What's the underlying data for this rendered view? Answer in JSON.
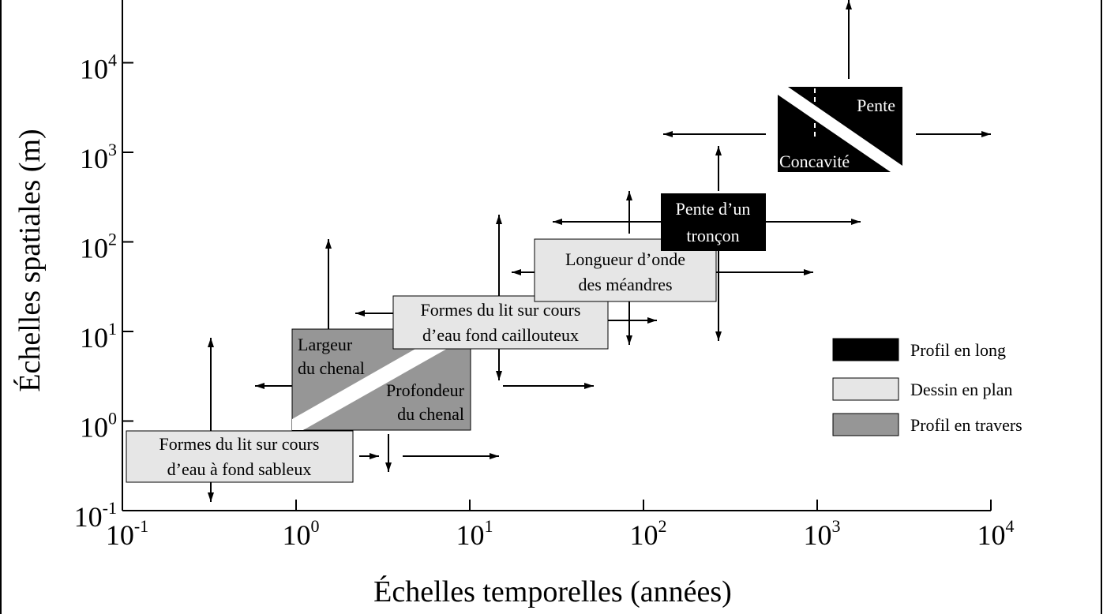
{
  "axes": {
    "x_label": "Échelles temporelles (années)",
    "y_label": "Échelles spatiales (m)",
    "x_ticks": [
      {
        "base": "10",
        "exponent": "-1"
      },
      {
        "base": "10",
        "exponent": "0"
      },
      {
        "base": "10",
        "exponent": "1"
      },
      {
        "base": "10",
        "exponent": "2"
      },
      {
        "base": "10",
        "exponent": "3"
      },
      {
        "base": "10",
        "exponent": "4"
      }
    ],
    "y_ticks": [
      {
        "base": "10",
        "exponent": "-1"
      },
      {
        "base": "10",
        "exponent": "0"
      },
      {
        "base": "10",
        "exponent": "1"
      },
      {
        "base": "10",
        "exponent": "2"
      },
      {
        "base": "10",
        "exponent": "3"
      },
      {
        "base": "10",
        "exponent": "4"
      }
    ]
  },
  "boxes": {
    "pente": "Pente",
    "concavite": "Concavité",
    "pente_troncon": [
      "Pente d’un",
      "tronçon"
    ],
    "meandres": [
      "Longueur d’onde",
      "des méandres"
    ],
    "caillouteux": [
      "Formes du lit sur cours",
      "d’eau fond caillouteux"
    ],
    "largeur": [
      "Largeur",
      "du chenal"
    ],
    "profondeur": [
      "Profondeur",
      "du chenal"
    ],
    "sableux": [
      "Formes du lit sur cours",
      "d’eau à fond sableux"
    ]
  },
  "legend": [
    "Profil en long",
    "Dessin en plan",
    "Profil en travers"
  ]
}
